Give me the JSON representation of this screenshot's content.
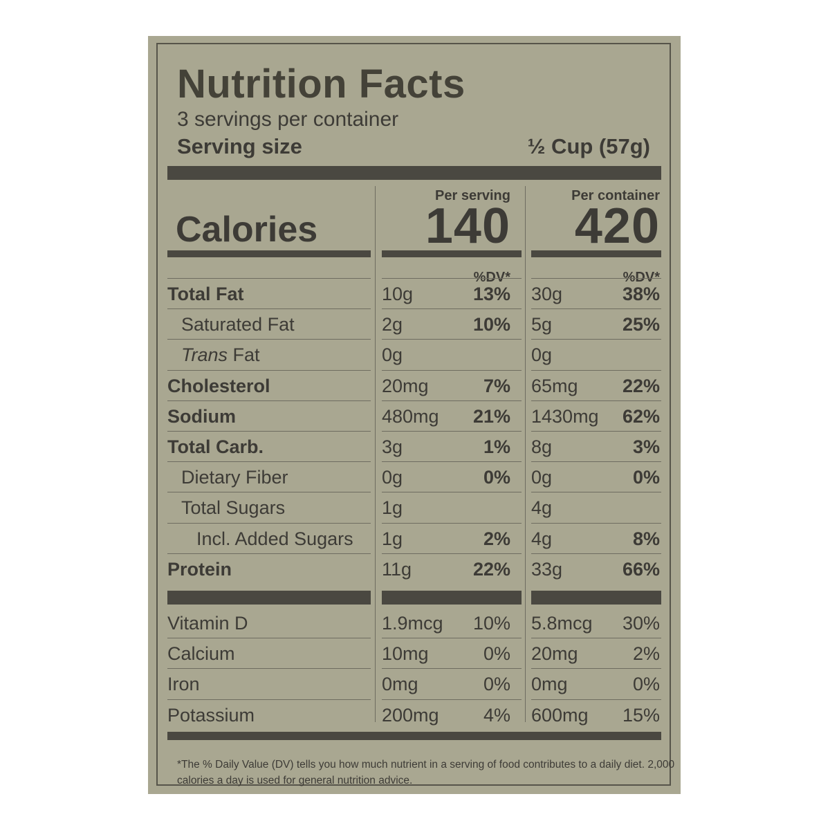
{
  "title": "Nutrition Facts",
  "servings_per_container": "3 servings per container",
  "serving_size_label": "Serving size",
  "serving_size_value": "½ Cup (57g)",
  "calories_label": "Calories",
  "per_serving_label": "Per serving",
  "per_container_label": "Per container",
  "calories_per_serving": "140",
  "calories_per_container": "420",
  "dv_label": "%DV*",
  "nutrients": [
    {
      "name": "Total Fat",
      "serving_amount": "10g",
      "serving_dv": "13%",
      "container_amount": "30g",
      "container_dv": "38%"
    },
    {
      "name": "Saturated Fat",
      "serving_amount": "2g",
      "serving_dv": "10%",
      "container_amount": "5g",
      "container_dv": "25%"
    },
    {
      "name_italic": "Trans",
      "name_rest": " Fat",
      "serving_amount": "0g",
      "serving_dv": "",
      "container_amount": "0g",
      "container_dv": ""
    },
    {
      "name": "Cholesterol",
      "serving_amount": "20mg",
      "serving_dv": "7%",
      "container_amount": "65mg",
      "container_dv": "22%"
    },
    {
      "name": "Sodium",
      "serving_amount": "480mg",
      "serving_dv": "21%",
      "container_amount": "1430mg",
      "container_dv": "62%"
    },
    {
      "name": "Total Carb.",
      "serving_amount": "3g",
      "serving_dv": "1%",
      "container_amount": "8g",
      "container_dv": "3%"
    },
    {
      "name": "Dietary Fiber",
      "serving_amount": "0g",
      "serving_dv": "0%",
      "container_amount": "0g",
      "container_dv": "0%"
    },
    {
      "name": "Total Sugars",
      "serving_amount": "1g",
      "serving_dv": "",
      "container_amount": "4g",
      "container_dv": ""
    },
    {
      "name": "Incl. Added Sugars",
      "serving_amount": "1g",
      "serving_dv": "2%",
      "container_amount": "4g",
      "container_dv": "8%"
    },
    {
      "name": "Protein",
      "serving_amount": "11g",
      "serving_dv": "22%",
      "container_amount": "33g",
      "container_dv": "66%"
    }
  ],
  "micronutrients": [
    {
      "name": "Vitamin D",
      "serving_amount": "1.9mcg",
      "serving_dv": "10%",
      "container_amount": "5.8mcg",
      "container_dv": "30%"
    },
    {
      "name": "Calcium",
      "serving_amount": "10mg",
      "serving_dv": "0%",
      "container_amount": "20mg",
      "container_dv": "2%"
    },
    {
      "name": "Iron",
      "serving_amount": "0mg",
      "serving_dv": "0%",
      "container_amount": "0mg",
      "container_dv": "0%"
    },
    {
      "name": "Potassium",
      "serving_amount": "200mg",
      "serving_dv": "4%",
      "container_amount": "600mg",
      "container_dv": "15%"
    }
  ],
  "footnote": "*The % Daily Value (DV) tells you how much nutrient in a serving of food contributes to a daily diet. 2,000 calories a day is used for general nutrition advice.",
  "colors": {
    "label_background": "#a9a791",
    "ink": "#3d3b36",
    "rule": "#4a4841"
  }
}
